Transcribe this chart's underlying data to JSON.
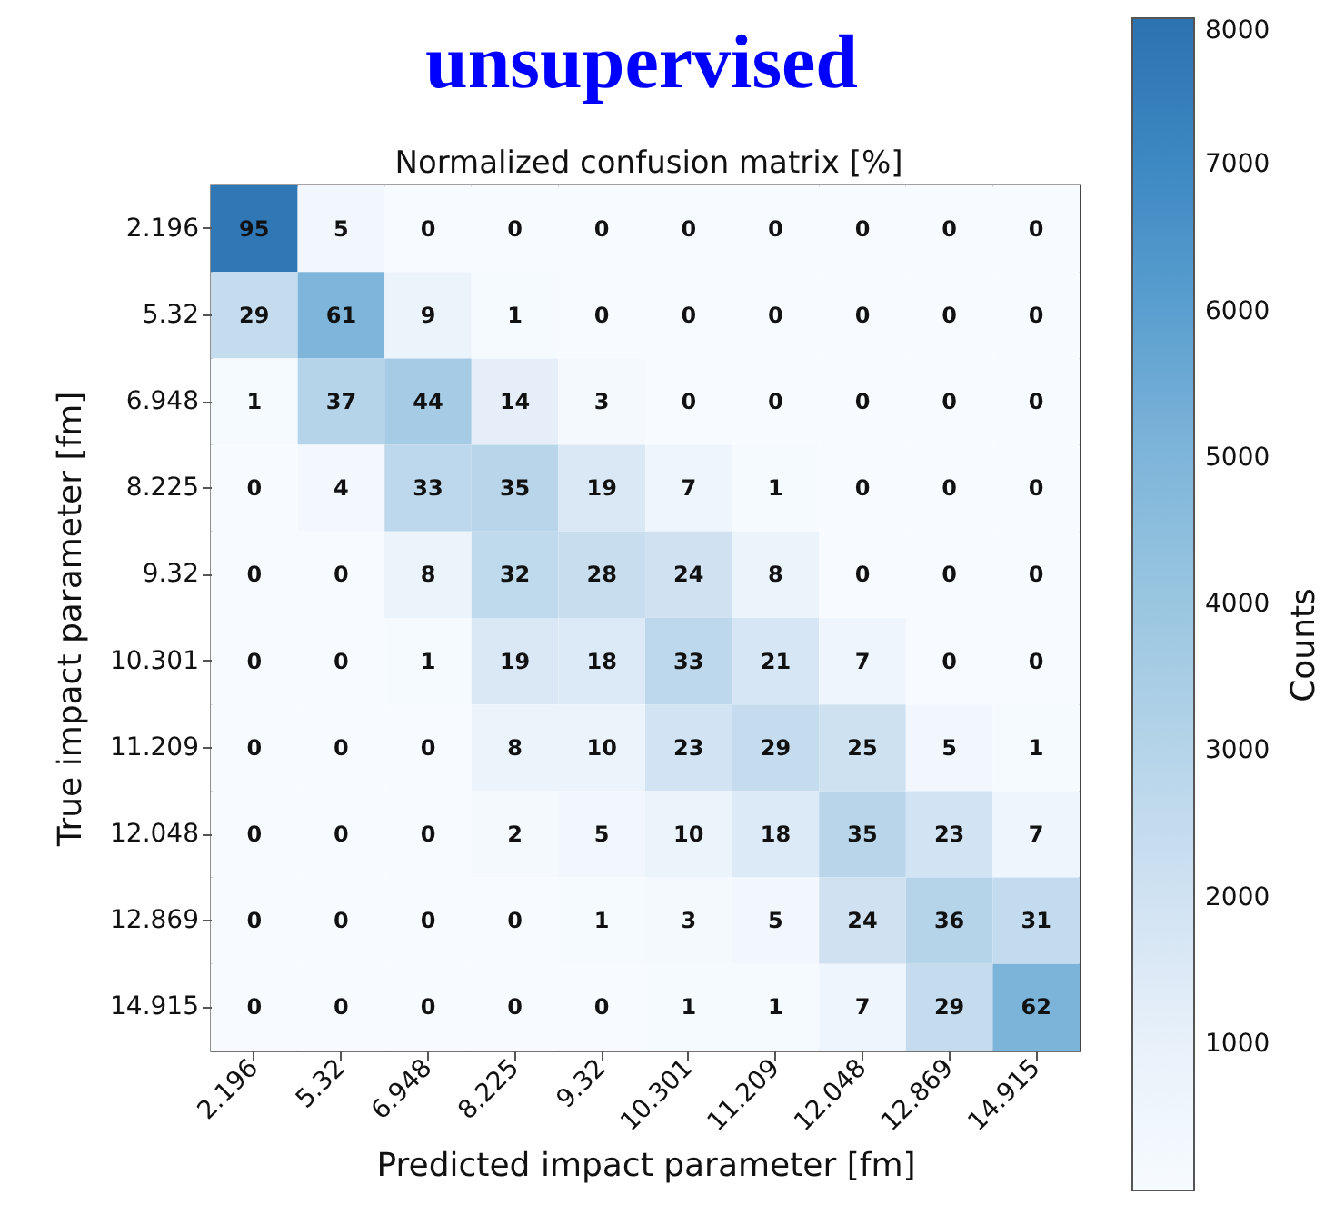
{
  "chart_data": {
    "type": "heatmap",
    "title": "unsupervised",
    "subtitle": "Normalized confusion matrix [%]",
    "xlabel": "Predicted impact parameter [fm]",
    "ylabel": "True impact parameter [fm]",
    "clabel": "Counts",
    "categories": [
      "2.196",
      "5.32",
      "6.948",
      "8.225",
      "9.32",
      "10.301",
      "11.209",
      "12.048",
      "12.869",
      "14.915"
    ],
    "y_categories": [
      "2.196",
      "5.32",
      "6.948",
      "8.225",
      "9.32",
      "10.301",
      "11.209",
      "12.048",
      "12.869",
      "14.915"
    ],
    "cells": [
      [
        7800,
        400,
        0,
        0,
        0,
        0,
        0,
        0,
        0,
        0
      ],
      [
        2400,
        5000,
        700,
        100,
        0,
        0,
        0,
        0,
        0,
        0
      ],
      [
        100,
        3000,
        3600,
        1100,
        200,
        0,
        0,
        0,
        0,
        0
      ],
      [
        0,
        300,
        2700,
        2900,
        1600,
        600,
        100,
        0,
        0,
        0
      ],
      [
        0,
        0,
        700,
        2600,
        2300,
        2000,
        700,
        0,
        0,
        0
      ],
      [
        0,
        0,
        100,
        1600,
        1500,
        2700,
        1700,
        600,
        0,
        0
      ],
      [
        0,
        0,
        0,
        700,
        800,
        1900,
        2400,
        2100,
        400,
        100
      ],
      [
        0,
        0,
        0,
        200,
        400,
        800,
        1500,
        2900,
        1900,
        600
      ],
      [
        0,
        0,
        0,
        0,
        100,
        200,
        400,
        2000,
        3000,
        2500
      ],
      [
        0,
        0,
        0,
        0,
        0,
        100,
        100,
        600,
        2400,
        5100
      ]
    ],
    "clim": [
      0,
      8000
    ],
    "cticks": [
      1000,
      2000,
      3000,
      4000,
      5000,
      6000,
      7000,
      8000
    ],
    "annotations": [
      "95",
      "5",
      "0",
      "0",
      "0",
      "0",
      "0",
      "0",
      "0",
      "0",
      "29",
      "61",
      "9",
      "1",
      "0",
      "0",
      "0",
      "0",
      "0",
      "0",
      "1",
      "37",
      "44",
      "14",
      "3",
      "0",
      "0",
      "0",
      "0",
      "0",
      "0",
      "4",
      "33",
      "35",
      "19",
      "7",
      "1",
      "0",
      "0",
      "0",
      "0",
      "0",
      "8",
      "32",
      "28",
      "24",
      "8",
      "0",
      "0",
      "0",
      "0",
      "0",
      "1",
      "19",
      "18",
      "33",
      "21",
      "7",
      "0",
      "0",
      "0",
      "0",
      "0",
      "8",
      "10",
      "23",
      "29",
      "25",
      "5",
      "1",
      "0",
      "0",
      "0",
      "2",
      "5",
      "10",
      "18",
      "35",
      "23",
      "7",
      "0",
      "0",
      "0",
      "0",
      "1",
      "3",
      "5",
      "24",
      "36",
      "31",
      "0",
      "0",
      "0",
      "0",
      "0",
      "1",
      "1",
      "7",
      "29",
      "62"
    ]
  }
}
